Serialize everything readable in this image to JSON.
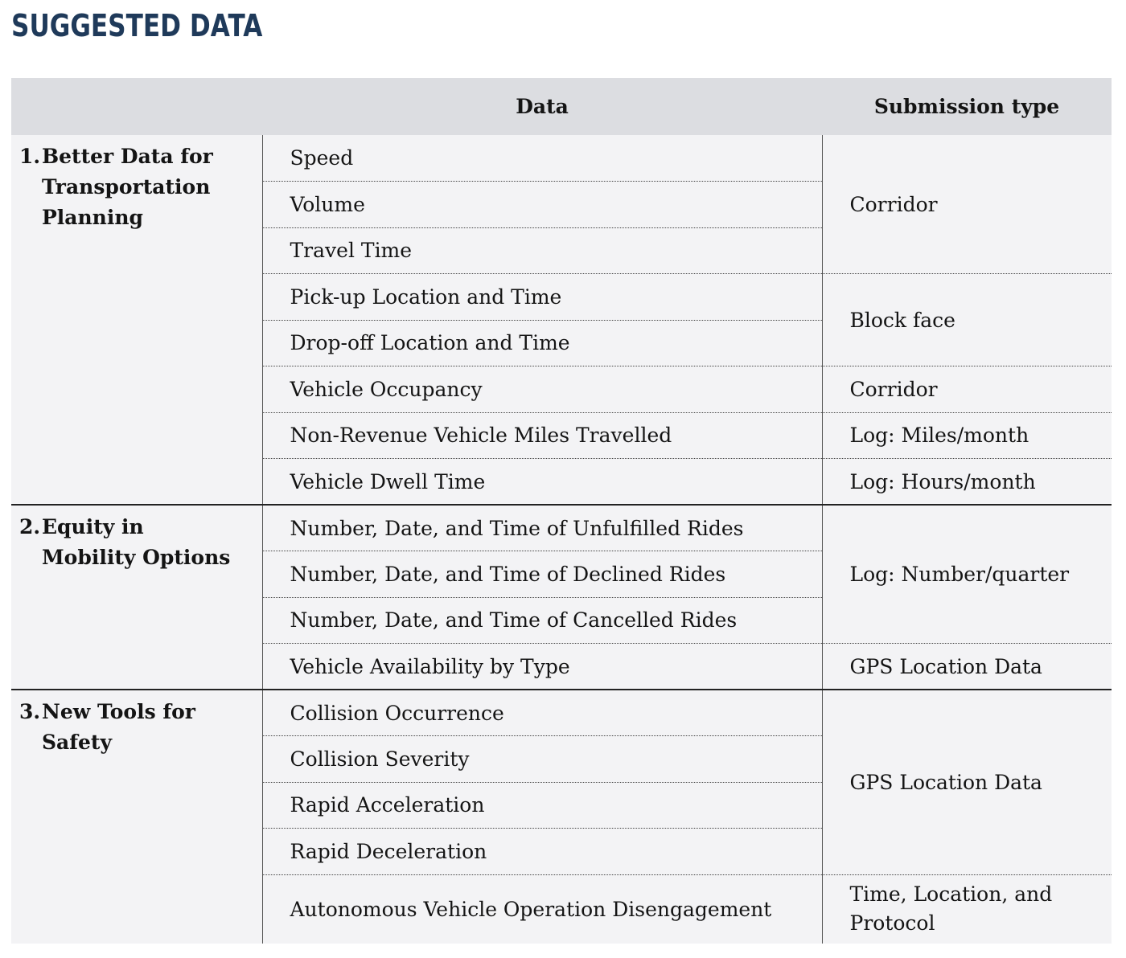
{
  "title": "SUGGESTED DATA",
  "table": {
    "headers": {
      "category": "",
      "data": "Data",
      "submission_type": "Submission type"
    },
    "sections": [
      {
        "number": "1.",
        "label": "Better Data for Transportation Planning",
        "data_items": [
          "Speed",
          "Volume",
          "Travel Time",
          "Pick-up Location and Time",
          "Drop-off Location and Time",
          "Vehicle Occupancy",
          "Non-Revenue Vehicle Miles Travelled",
          "Vehicle Dwell Time"
        ],
        "submission_types": [
          "Corridor",
          "Block face",
          "Corridor",
          "Log: Miles/month",
          "Log: Hours/month"
        ]
      },
      {
        "number": "2.",
        "label": "Equity in Mobility Options",
        "data_items": [
          "Number, Date, and Time of Unfulfilled Rides",
          "Number, Date, and Time of Declined Rides",
          "Number, Date, and Time of Cancelled Rides",
          "Vehicle Availability by Type"
        ],
        "submission_types": [
          "Log: Number/quarter",
          "GPS Location Data"
        ]
      },
      {
        "number": "3.",
        "label": "New Tools for Safety",
        "data_items": [
          "Collision Occurrence",
          "Collision Severity",
          "Rapid Acceleration",
          "Rapid Deceleration",
          "Autonomous Vehicle Operation Disengagement"
        ],
        "submission_types": [
          "GPS Location Data",
          "Time, Location, and Protocol"
        ]
      }
    ]
  }
}
